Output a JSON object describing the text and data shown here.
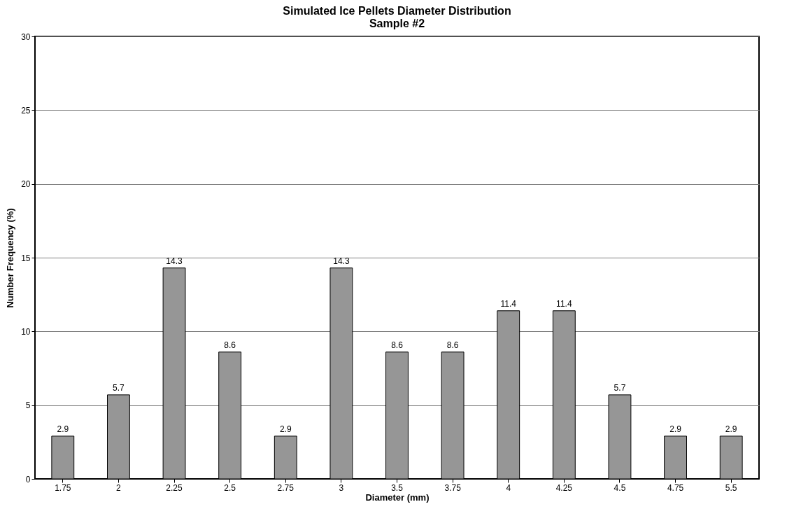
{
  "chart_data": {
    "type": "bar",
    "title": "Simulated Ice Pellets Diameter Distribution",
    "subtitle": "Sample #2",
    "xlabel": "Diameter (mm)",
    "ylabel": "Number Frequency (%)",
    "categories": [
      "1.75",
      "2",
      "2.25",
      "2.5",
      "2.75",
      "3",
      "3.5",
      "3.75",
      "4",
      "4.25",
      "4.5",
      "4.75",
      "5.5"
    ],
    "values": [
      2.9,
      5.7,
      14.3,
      8.6,
      2.9,
      14.3,
      8.6,
      8.6,
      11.4,
      11.4,
      5.7,
      2.9,
      2.9
    ],
    "color": "#969696",
    "ylim": [
      0,
      30
    ],
    "yticks": [
      0,
      5,
      10,
      15,
      20,
      25,
      30
    ],
    "grid": "y",
    "data_labels": true
  }
}
